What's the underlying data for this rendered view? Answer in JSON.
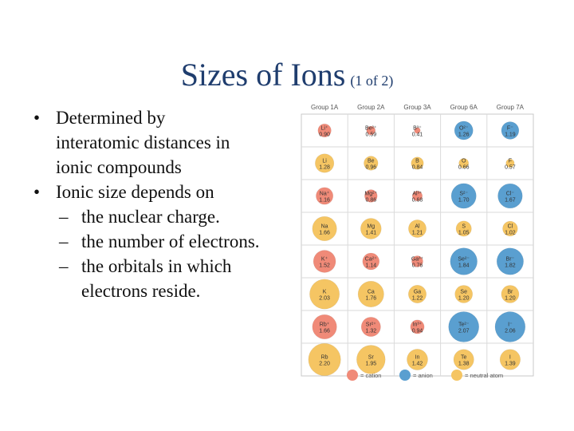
{
  "slide": {
    "title": "Sizes of Ions",
    "title_suffix": "(1 of 2)",
    "bullets": [
      {
        "level": 1,
        "marker": "•",
        "lines": [
          "Determined by",
          "interatomic distances in",
          "ionic compounds"
        ]
      },
      {
        "level": 1,
        "marker": "•",
        "lines": [
          "Ionic size depends on"
        ]
      },
      {
        "level": 2,
        "marker": "–",
        "lines": [
          "the nuclear charge."
        ]
      },
      {
        "level": 2,
        "marker": "–",
        "lines": [
          "the number of electrons."
        ]
      },
      {
        "level": 2,
        "marker": "–",
        "lines": [
          "the orbitals in which",
          "electrons reside."
        ]
      }
    ]
  },
  "figure": {
    "groups": [
      "Group 1A",
      "Group 2A",
      "Group 3A",
      "Group 6A",
      "Group 7A"
    ],
    "colors": {
      "cation": "#f08a78",
      "anion": "#5a9fd0",
      "neutral": "#f5c563"
    },
    "rows": [
      [
        {
          "label": "Li⁺",
          "value": "0.90",
          "type": "cation"
        },
        {
          "label": "Be²⁺",
          "value": "0.59",
          "type": "cation"
        },
        {
          "label": "B³⁺",
          "value": "0.41",
          "type": "cation"
        },
        {
          "label": "O²⁻",
          "value": "1.26",
          "type": "anion"
        },
        {
          "label": "F⁻",
          "value": "1.19",
          "type": "anion"
        }
      ],
      [
        {
          "label": "Li",
          "value": "1.28",
          "type": "neutral"
        },
        {
          "label": "Be",
          "value": "0.96",
          "type": "neutral"
        },
        {
          "label": "B",
          "value": "0.84",
          "type": "neutral"
        },
        {
          "label": "O",
          "value": "0.66",
          "type": "neutral"
        },
        {
          "label": "F",
          "value": "0.57",
          "type": "neutral"
        }
      ],
      [
        {
          "label": "Na⁺",
          "value": "1.16",
          "type": "cation"
        },
        {
          "label": "Mg²⁺",
          "value": "0.86",
          "type": "cation"
        },
        {
          "label": "Al³⁺",
          "value": "0.68",
          "type": "cation"
        },
        {
          "label": "S²⁻",
          "value": "1.70",
          "type": "anion"
        },
        {
          "label": "Cl⁻",
          "value": "1.67",
          "type": "anion"
        }
      ],
      [
        {
          "label": "Na",
          "value": "1.66",
          "type": "neutral"
        },
        {
          "label": "Mg",
          "value": "1.41",
          "type": "neutral"
        },
        {
          "label": "Al",
          "value": "1.21",
          "type": "neutral"
        },
        {
          "label": "S",
          "value": "1.05",
          "type": "neutral"
        },
        {
          "label": "Cl",
          "value": "1.02",
          "type": "neutral"
        }
      ],
      [
        {
          "label": "K⁺",
          "value": "1.52",
          "type": "cation"
        },
        {
          "label": "Ca²⁺",
          "value": "1.14",
          "type": "cation"
        },
        {
          "label": "Ga³⁺",
          "value": "0.76",
          "type": "cation"
        },
        {
          "label": "Se²⁻",
          "value": "1.84",
          "type": "anion"
        },
        {
          "label": "Br⁻",
          "value": "1.82",
          "type": "anion"
        }
      ],
      [
        {
          "label": "K",
          "value": "2.03",
          "type": "neutral"
        },
        {
          "label": "Ca",
          "value": "1.76",
          "type": "neutral"
        },
        {
          "label": "Ga",
          "value": "1.22",
          "type": "neutral"
        },
        {
          "label": "Se",
          "value": "1.20",
          "type": "neutral"
        },
        {
          "label": "Br",
          "value": "1.20",
          "type": "neutral"
        }
      ],
      [
        {
          "label": "Rb⁺",
          "value": "1.66",
          "type": "cation"
        },
        {
          "label": "Sr²⁺",
          "value": "1.32",
          "type": "cation"
        },
        {
          "label": "In³⁺",
          "value": "0.94",
          "type": "cation"
        },
        {
          "label": "Te²⁻",
          "value": "2.07",
          "type": "anion"
        },
        {
          "label": "I⁻",
          "value": "2.06",
          "type": "anion"
        }
      ],
      [
        {
          "label": "Rb",
          "value": "2.20",
          "type": "neutral"
        },
        {
          "label": "Sr",
          "value": "1.95",
          "type": "neutral"
        },
        {
          "label": "In",
          "value": "1.42",
          "type": "neutral"
        },
        {
          "label": "Te",
          "value": "1.38",
          "type": "neutral"
        },
        {
          "label": "I",
          "value": "1.39",
          "type": "neutral"
        }
      ]
    ],
    "legend": [
      {
        "type": "cation",
        "label": "= cation"
      },
      {
        "type": "anion",
        "label": "= anion"
      },
      {
        "type": "neutral",
        "label": "= neutral atom"
      }
    ]
  }
}
